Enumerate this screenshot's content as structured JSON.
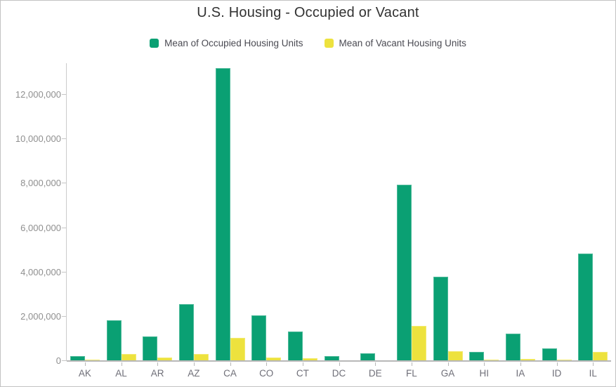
{
  "chart_data": {
    "type": "bar",
    "title": "U.S. Housing - Occupied or Vacant",
    "categories": [
      "AK",
      "AL",
      "AR",
      "AZ",
      "CA",
      "CO",
      "CT",
      "DC",
      "DE",
      "FL",
      "GA",
      "HI",
      "IA",
      "ID",
      "IL"
    ],
    "series": [
      {
        "name": "Mean of Occupied Housing Units",
        "color": "#0AA073",
        "values": [
          220000,
          1840000,
          1100000,
          2570000,
          13200000,
          2050000,
          1330000,
          230000,
          350000,
          7950000,
          3810000,
          410000,
          1220000,
          570000,
          4840000
        ]
      },
      {
        "name": "Mean of Vacant Housing Units",
        "color": "#EDE23E",
        "values": [
          60000,
          320000,
          160000,
          330000,
          1040000,
          150000,
          120000,
          30000,
          40000,
          1570000,
          440000,
          50000,
          100000,
          50000,
          420000
        ]
      }
    ],
    "xlabel": "",
    "ylabel": "",
    "ylim": [
      0,
      13390000
    ],
    "yticks": [
      0,
      2000000,
      4000000,
      6000000,
      8000000,
      10000000,
      12000000
    ],
    "ytick_labels": [
      "0",
      "2,000,000",
      "4,000,000",
      "6,000,000",
      "8,000,000",
      "10,000,000",
      "12,000,000"
    ],
    "grid": false,
    "legend_position": "top"
  },
  "ui_colors": {
    "title_text": "#323232",
    "legend_text": "#4a4a52",
    "y_tick_text": "#8f8f8f",
    "x_tick_text": "#6f6f78",
    "axis_line": "#b8b8b8",
    "widget_border": "#c2c2c2"
  }
}
